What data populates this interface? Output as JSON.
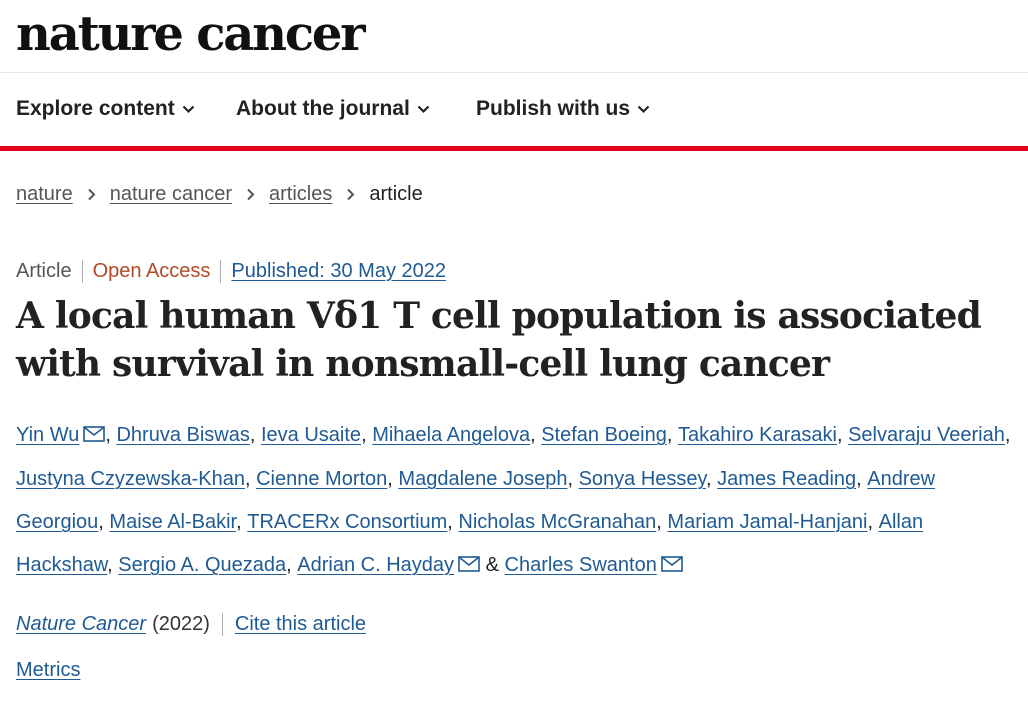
{
  "site": {
    "logo": "nature cancer"
  },
  "nav": {
    "explore": "Explore content",
    "about": "About the journal",
    "publish": "Publish with us"
  },
  "breadcrumb": {
    "c1": "nature",
    "c2": "nature cancer",
    "c3": "articles",
    "current": "article"
  },
  "article": {
    "type": "Article",
    "access": "Open Access",
    "published": "Published: 30 May 2022",
    "title": "A local human Vδ1 T cell population is associated with survival in nonsmall-cell lung cancer"
  },
  "authors": [
    {
      "name": "Yin Wu",
      "email": true
    },
    {
      "name": "Dhruva Biswas",
      "email": false
    },
    {
      "name": "Ieva Usaite",
      "email": false
    },
    {
      "name": "Mihaela Angelova",
      "email": false
    },
    {
      "name": "Stefan Boeing",
      "email": false
    },
    {
      "name": "Takahiro Karasaki",
      "email": false
    },
    {
      "name": "Selvaraju Veeriah",
      "email": false
    },
    {
      "name": "Justyna Czyzewska-Khan",
      "email": false
    },
    {
      "name": "Cienne Morton",
      "email": false
    },
    {
      "name": "Magdalene Joseph",
      "email": false
    },
    {
      "name": "Sonya Hessey",
      "email": false
    },
    {
      "name": "James Reading",
      "email": false
    },
    {
      "name": "Andrew Georgiou",
      "email": false
    },
    {
      "name": "Maise Al-Bakir",
      "email": false
    },
    {
      "name": "TRACERx Consortium",
      "email": false
    },
    {
      "name": "Nicholas McGranahan",
      "email": false
    },
    {
      "name": "Mariam Jamal-Hanjani",
      "email": false
    },
    {
      "name": "Allan Hackshaw",
      "email": false
    },
    {
      "name": "Sergio A. Quezada",
      "email": false
    },
    {
      "name": "Adrian C. Hayday",
      "email": true
    },
    {
      "name": "Charles Swanton",
      "email": true
    }
  ],
  "separators": {
    "comma": ",",
    "and": "&"
  },
  "citation": {
    "journal": "Nature Cancer",
    "year": "(2022)",
    "cite_label": "Cite this article"
  },
  "metrics": {
    "label": "Metrics"
  },
  "colors": {
    "accent_bar": "#e0001b",
    "link": "#1f5a93",
    "open_access": "#b14a25"
  },
  "icons": {
    "nav_dropdown": "chevron-down-icon",
    "breadcrumb_separator": "chevron-right-icon",
    "author_contact": "envelope-icon"
  }
}
